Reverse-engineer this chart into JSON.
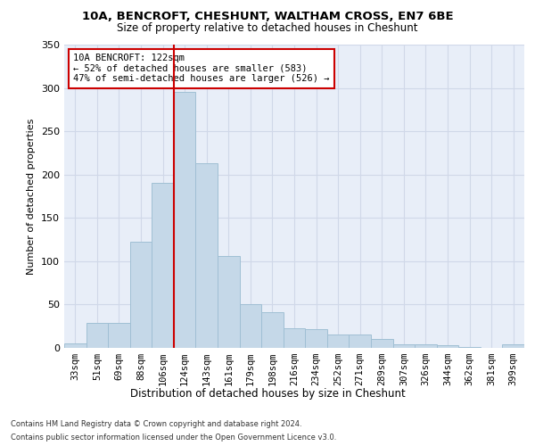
{
  "title1": "10A, BENCROFT, CHESHUNT, WALTHAM CROSS, EN7 6BE",
  "title2": "Size of property relative to detached houses in Cheshunt",
  "xlabel": "Distribution of detached houses by size in Cheshunt",
  "ylabel": "Number of detached properties",
  "categories": [
    "33sqm",
    "51sqm",
    "69sqm",
    "88sqm",
    "106sqm",
    "124sqm",
    "143sqm",
    "161sqm",
    "179sqm",
    "198sqm",
    "216sqm",
    "234sqm",
    "252sqm",
    "271sqm",
    "289sqm",
    "307sqm",
    "326sqm",
    "344sqm",
    "362sqm",
    "381sqm",
    "399sqm"
  ],
  "values": [
    5,
    29,
    29,
    122,
    190,
    295,
    213,
    106,
    50,
    41,
    23,
    22,
    15,
    15,
    10,
    4,
    4,
    3,
    1,
    0,
    4
  ],
  "bar_color": "#c5d8e8",
  "bar_edge_color": "#a0bfd4",
  "vline_color": "#cc0000",
  "annotation_text": "10A BENCROFT: 122sqm\n← 52% of detached houses are smaller (583)\n47% of semi-detached houses are larger (526) →",
  "annotation_box_color": "#ffffff",
  "annotation_box_edge": "#cc0000",
  "ylim": [
    0,
    350
  ],
  "yticks": [
    0,
    50,
    100,
    150,
    200,
    250,
    300,
    350
  ],
  "grid_color": "#d0d8e8",
  "background_color": "#e8eef8",
  "footer1": "Contains HM Land Registry data © Crown copyright and database right 2024.",
  "footer2": "Contains public sector information licensed under the Open Government Licence v3.0."
}
